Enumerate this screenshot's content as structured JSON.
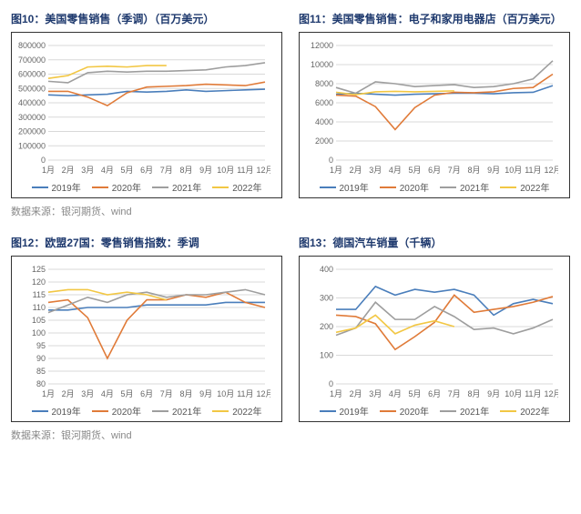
{
  "months": [
    "1月",
    "2月",
    "3月",
    "4月",
    "5月",
    "6月",
    "7月",
    "8月",
    "9月",
    "10月",
    "11月",
    "12月"
  ],
  "series_labels": [
    "2019年",
    "2020年",
    "2021年",
    "2022年"
  ],
  "colors": {
    "s2019": "#4a7ebb",
    "s2020": "#e07b39",
    "s2021": "#9e9e9e",
    "s2022": "#f2c744",
    "grid": "#d9d9d9",
    "title": "#1f3a6e",
    "source": "#888888"
  },
  "source_text": "数据来源：银河期货、wind",
  "charts": [
    {
      "title": "图10：美国零售销售（季调）（百万美元）",
      "ymin": 0,
      "ymax": 800000,
      "ystep": 100000,
      "s2019": [
        455000,
        450000,
        455000,
        460000,
        480000,
        475000,
        480000,
        490000,
        480000,
        485000,
        490000,
        495000
      ],
      "s2020": [
        480000,
        480000,
        440000,
        380000,
        470000,
        510000,
        515000,
        520000,
        530000,
        525000,
        520000,
        545000
      ],
      "s2021": [
        550000,
        540000,
        610000,
        620000,
        615000,
        620000,
        620000,
        625000,
        630000,
        650000,
        660000,
        680000
      ],
      "s2022": [
        570000,
        590000,
        650000,
        655000,
        650000,
        660000,
        660000
      ]
    },
    {
      "title": "图11：美国零售销售：电子和家用电器店（百万美元）",
      "ymin": 0,
      "ymax": 12000,
      "ystep": 2000,
      "s2019": [
        6900,
        7000,
        6900,
        6800,
        6900,
        6950,
        7000,
        7000,
        6950,
        7050,
        7100,
        7800
      ],
      "s2020": [
        6800,
        6700,
        5600,
        3200,
        5500,
        6800,
        7100,
        7050,
        7150,
        7500,
        7600,
        9000
      ],
      "s2021": [
        7600,
        7000,
        8200,
        8000,
        7700,
        7800,
        7900,
        7600,
        7700,
        8000,
        8500,
        10400
      ],
      "s2022": [
        7100,
        6850,
        7150,
        7200,
        7150,
        7200,
        7250
      ]
    },
    {
      "title": "图12：欧盟27国：零售销售指数：季调",
      "ymin": 80,
      "ymax": 125,
      "ystep": 5,
      "s2019": [
        109,
        109,
        110,
        110,
        110,
        111,
        111,
        111,
        111,
        112,
        112,
        112
      ],
      "s2020": [
        112,
        113,
        106,
        90,
        105,
        113,
        113,
        115,
        114,
        116,
        112,
        110
      ],
      "s2021": [
        108,
        111,
        114,
        112,
        115,
        116,
        114,
        115,
        115,
        116,
        117,
        115
      ],
      "s2022": [
        116,
        117,
        117,
        115,
        116,
        115,
        113
      ]
    },
    {
      "title": "图13：德国汽车销量（千辆）",
      "ymin": 0,
      "ymax": 400,
      "ystep": 100,
      "s2019": [
        260,
        260,
        340,
        310,
        330,
        320,
        330,
        310,
        240,
        280,
        295,
        280
      ],
      "s2020": [
        240,
        235,
        210,
        120,
        165,
        215,
        310,
        250,
        260,
        270,
        285,
        305
      ],
      "s2021": [
        170,
        195,
        285,
        225,
        225,
        270,
        235,
        190,
        195,
        175,
        195,
        225
      ],
      "s2022": [
        180,
        195,
        240,
        175,
        205,
        220,
        200
      ]
    }
  ]
}
